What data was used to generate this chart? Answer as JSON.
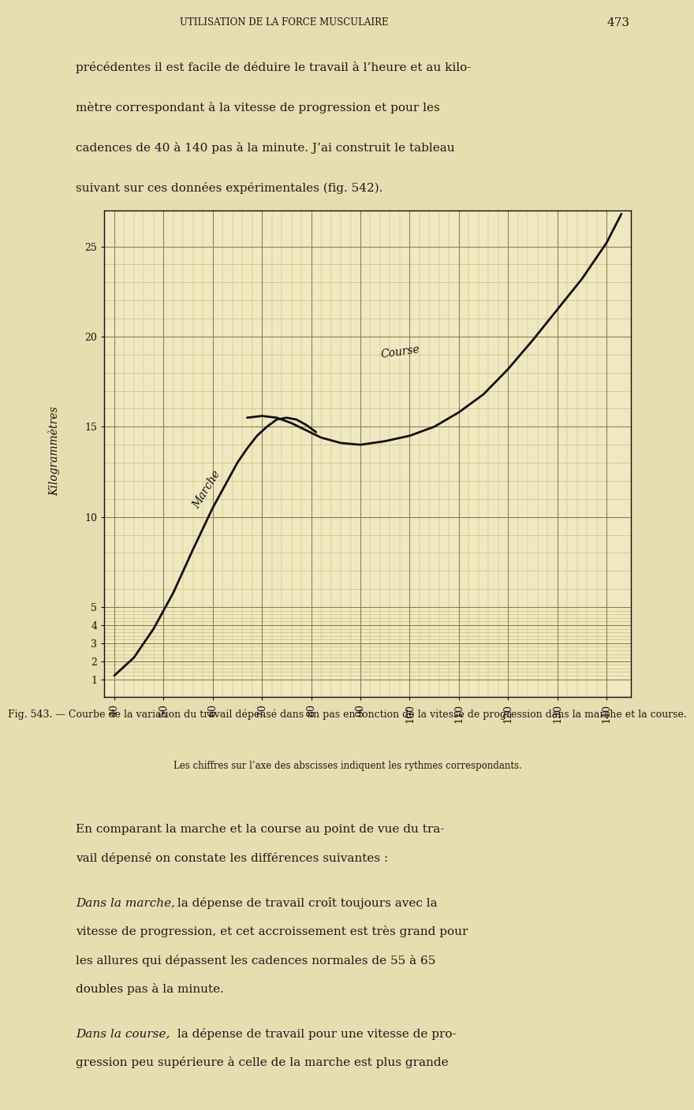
{
  "page_bg": "#e8ddb0",
  "chart_bg": "#f0e8c0",
  "title_header": "UTILISATION DE LA FORCE MUSCULAIRE",
  "page_number": "473",
  "fig_caption_line1": "Fig. 543. — Courbe de la variation du travail dépensé dans un pas en fonction de la vitesse de progression dans la marche et la course.",
  "fig_caption_line2": "Les chiffres sur l’axe des abscisses indiquent les rythmes correspondants.",
  "ylabel_text": "Kilogrammètres",
  "xlabel_ticks": [
    40,
    50,
    60,
    70,
    80,
    90,
    100,
    110,
    120,
    130,
    140
  ],
  "yticks": [
    1,
    2,
    3,
    4,
    5,
    10,
    15,
    20,
    25
  ],
  "ylim": [
    0,
    27
  ],
  "xlim": [
    38,
    145
  ],
  "marche_x": [
    40,
    44,
    48,
    52,
    56,
    60,
    63,
    65,
    67,
    69,
    71,
    73,
    75,
    77,
    79,
    81
  ],
  "marche_y": [
    1.2,
    2.2,
    3.8,
    5.8,
    8.2,
    10.5,
    12.0,
    13.0,
    13.8,
    14.5,
    15.0,
    15.4,
    15.5,
    15.4,
    15.1,
    14.7
  ],
  "course_x": [
    67,
    70,
    73,
    76,
    79,
    82,
    86,
    90,
    95,
    100,
    105,
    110,
    115,
    120,
    125,
    130,
    135,
    140,
    143
  ],
  "course_y": [
    15.5,
    15.6,
    15.5,
    15.2,
    14.8,
    14.4,
    14.1,
    14.0,
    14.2,
    14.5,
    15.0,
    15.8,
    16.8,
    18.2,
    19.8,
    21.5,
    23.2,
    25.2,
    26.8
  ],
  "marche_label": "Marche",
  "course_label": "Course",
  "text_top": [
    "précédentes il est facile de déduire le travail à l’heure et au kilo-",
    "mètre correspondant à la vitesse de progression et pour les",
    "cadences de 40 à 140 pas à la minute. J’ai construit le tableau",
    "suivant sur ces données expérimentales (fig. 542)."
  ],
  "text_bottom": [
    "En comparant la marche et la course au point de vue du tra-",
    "vail dépensé on constate les différences suivantes :",
    "",
    "Dans la marche, la dépense de travail croît toujours avec la",
    "vitesse de progression, et cet accroissement est très grand pour",
    "les allures qui dépassent les cadences normales de 55 à 65",
    "doubles pas à la minute.",
    "",
    "Dans la course, la dépense de travail pour une vitesse de pro-",
    "gression peu supérieure à celle de la marche est plus grande"
  ]
}
